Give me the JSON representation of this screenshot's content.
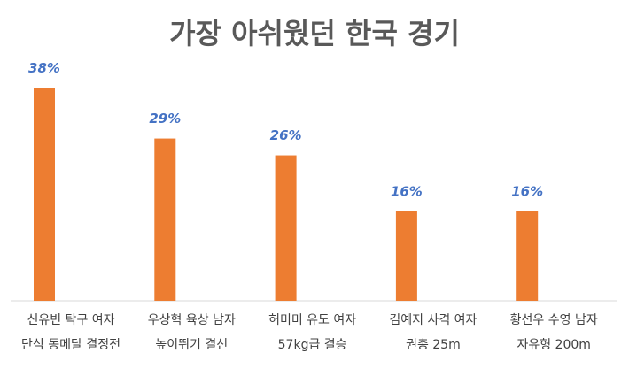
{
  "chart_data": {
    "type": "bar",
    "title": "가장 아쉬웠던 한국 경기",
    "categories": [
      [
        "신유빈 탁구 여자",
        "단식 동메달 결정전"
      ],
      [
        "우상혁 육상 남자",
        "높이뛰기 결선"
      ],
      [
        "허미미 유도 여자",
        "57kg급 결승"
      ],
      [
        "김예지 사격 여자",
        "권총 25m"
      ],
      [
        "황선우 수영 남자",
        "자유형 200m"
      ]
    ],
    "values": [
      38,
      29,
      26,
      16,
      16
    ],
    "value_labels": [
      "38%",
      "29%",
      "26%",
      "16%",
      "16%"
    ],
    "color": "#ed7d31",
    "label_color": "#4472c4",
    "ylim": [
      0,
      40
    ],
    "grid": false
  }
}
